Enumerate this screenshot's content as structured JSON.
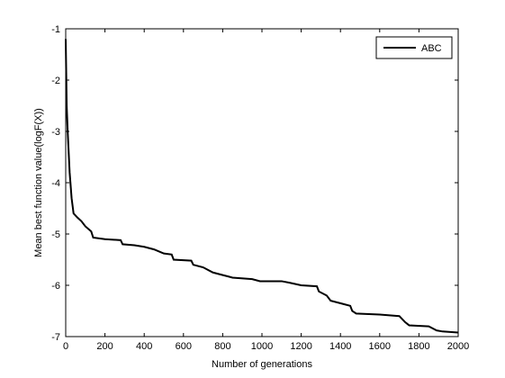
{
  "chart_data": {
    "type": "line",
    "xlabel": "Number of generations",
    "ylabel": "Mean best function value(logF(X))",
    "x": [
      0,
      5,
      10,
      20,
      30,
      40,
      60,
      80,
      100,
      130,
      140,
      200,
      280,
      290,
      350,
      400,
      450,
      500,
      540,
      550,
      640,
      650,
      700,
      750,
      800,
      850,
      950,
      990,
      1100,
      1140,
      1200,
      1280,
      1290,
      1330,
      1350,
      1450,
      1460,
      1480,
      1600,
      1700,
      1730,
      1750,
      1850,
      1890,
      1920,
      2000
    ],
    "series": [
      {
        "name": "ABC",
        "color": "#000000",
        "values": [
          -1.2,
          -2.5,
          -3.0,
          -3.8,
          -4.3,
          -4.6,
          -4.68,
          -4.75,
          -4.85,
          -4.95,
          -5.07,
          -5.1,
          -5.12,
          -5.2,
          -5.22,
          -5.25,
          -5.3,
          -5.38,
          -5.4,
          -5.5,
          -5.52,
          -5.6,
          -5.65,
          -5.75,
          -5.8,
          -5.85,
          -5.88,
          -5.92,
          -5.92,
          -5.95,
          -6.0,
          -6.02,
          -6.12,
          -6.2,
          -6.3,
          -6.4,
          -6.5,
          -6.55,
          -6.57,
          -6.6,
          -6.72,
          -6.78,
          -6.8,
          -6.88,
          -6.9,
          -6.92
        ]
      }
    ],
    "xlim": [
      0,
      2000
    ],
    "xticks": [
      0,
      200,
      400,
      600,
      800,
      1000,
      1200,
      1400,
      1600,
      1800,
      2000
    ],
    "ylim": [
      -7,
      -1
    ],
    "yticks": [
      -7,
      -6,
      -5,
      -4,
      -3,
      -2,
      -1
    ],
    "legend": "upper-right"
  }
}
